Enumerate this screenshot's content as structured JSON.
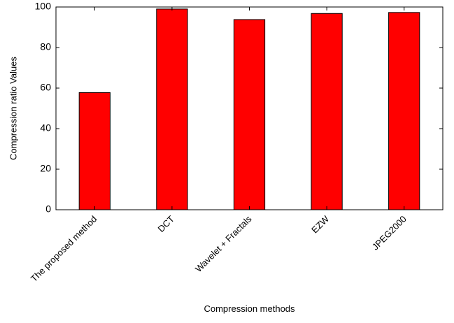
{
  "chart_data": {
    "type": "bar",
    "title": "",
    "xlabel": "Compression methods",
    "ylabel": "Compression ratio Values",
    "categories": [
      "The proposed method",
      "DCT",
      "Wavelet + Fractals",
      "EZW",
      "JPEG2000"
    ],
    "values": [
      57.8,
      99.0,
      93.8,
      96.8,
      97.3
    ],
    "ylim": [
      0,
      100
    ],
    "yticks": [
      0,
      20,
      40,
      60,
      80,
      100
    ],
    "bar_color": "#ff0000",
    "edge_color": "#000000",
    "grid": false,
    "legend": "none"
  }
}
